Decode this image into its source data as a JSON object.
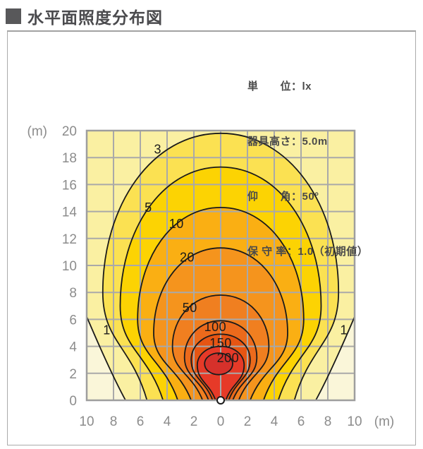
{
  "title": "水平面照度分布図",
  "legend": {
    "unit": "単　　位：lx",
    "fixture_height": "器具高さ：5.0m",
    "elevation_angle": "仰　　角：50°",
    "maintenance_factor": "保 守 率：1.0（初期値）"
  },
  "chart_data": {
    "type": "contour",
    "title": "水平面照度分布図",
    "unit": "lx",
    "fixture_height_m": 5.0,
    "elevation_angle_deg": 50,
    "maintenance_factor": 1.0,
    "x_axis": {
      "unit_label": "(m)",
      "ticks": [
        "10",
        "8",
        "6",
        "4",
        "2",
        "0",
        "2",
        "4",
        "6",
        "8",
        "10"
      ],
      "range_m": [
        -10,
        10
      ],
      "grid_step_m": 2
    },
    "y_axis": {
      "unit_label": "(m)",
      "ticks": [
        "20",
        "18",
        "16",
        "14",
        "12",
        "10",
        "8",
        "6",
        "4",
        "2",
        "0"
      ],
      "range_m": [
        0,
        20
      ],
      "grid_step_m": 2
    },
    "contour_levels_lx": [
      1,
      3,
      5,
      10,
      20,
      50,
      100,
      150,
      200
    ],
    "colors": {
      "band_lt1": "#faf6d9",
      "band_1_3": "#faf0a2",
      "grid": "#a9a9a9",
      "plot_border": "#9e9e9e",
      "contour_line": "#1a1a1a",
      "tick_text": "#8c8c8c",
      "label_text": "#1a1a1a"
    },
    "contour_1": {
      "value": 1,
      "fill_outside": "#faf6d9",
      "edge_y": 6.2,
      "mid_x": 8.2,
      "mid_y": 2.0,
      "bottom_x": 7.1
    },
    "contours": [
      {
        "value": 3,
        "fill": "#fbe152",
        "xb": 5.5,
        "xs": 8.8,
        "ys": 8.0,
        "yt": 19.8
      },
      {
        "value": 5,
        "fill": "#fcd303",
        "xb": 4.3,
        "xs": 7.5,
        "ys": 7.0,
        "yt": 17.3
      },
      {
        "value": 10,
        "fill": "#faaf13",
        "xb": 3.2,
        "xs": 6.2,
        "ys": 6.0,
        "yt": 14.3
      },
      {
        "value": 20,
        "fill": "#f5941d",
        "xb": 2.2,
        "xs": 5.0,
        "ys": 5.0,
        "yt": 11.3
      },
      {
        "value": 50,
        "fill": "#f07f20",
        "xb": 1.35,
        "xs": 3.6,
        "ys": 4.0,
        "yt": 7.8
      },
      {
        "value": 100,
        "fill": "#eb6a1c",
        "xb": 0.9,
        "xs": 2.7,
        "ys": 3.2,
        "yt": 5.9
      },
      {
        "value": 150,
        "fill": "#e65513",
        "xb": 0.6,
        "xs": 2.2,
        "ys": 3.0,
        "yt": 4.9
      },
      {
        "value": 200,
        "fill": "#e63a28",
        "xb": 0.38,
        "xs": 1.75,
        "ys": 2.6,
        "yt": 4.0
      }
    ],
    "inner_spot": {
      "fill": "#d6312b",
      "cx": -0.15,
      "cy": 2.7,
      "rx": 1.05,
      "ry": 0.8
    },
    "contour_labels": [
      {
        "text": "1",
        "x": -8.5,
        "y": 5.2
      },
      {
        "text": "1",
        "x": 9.2,
        "y": 5.2
      },
      {
        "text": "3",
        "x": -4.7,
        "y": 18.6
      },
      {
        "text": "5",
        "x": -5.4,
        "y": 14.3
      },
      {
        "text": "10",
        "x": -3.3,
        "y": 13.1
      },
      {
        "text": "20",
        "x": -2.5,
        "y": 10.6
      },
      {
        "text": "50",
        "x": -2.3,
        "y": 6.85
      },
      {
        "text": "100",
        "x": -0.4,
        "y": 5.45
      },
      {
        "text": "150",
        "x": 0.0,
        "y": 4.25
      },
      {
        "text": "200",
        "x": 0.55,
        "y": 3.15
      }
    ],
    "luminaire_marker": {
      "x_m": 0,
      "y_m": 0
    }
  }
}
